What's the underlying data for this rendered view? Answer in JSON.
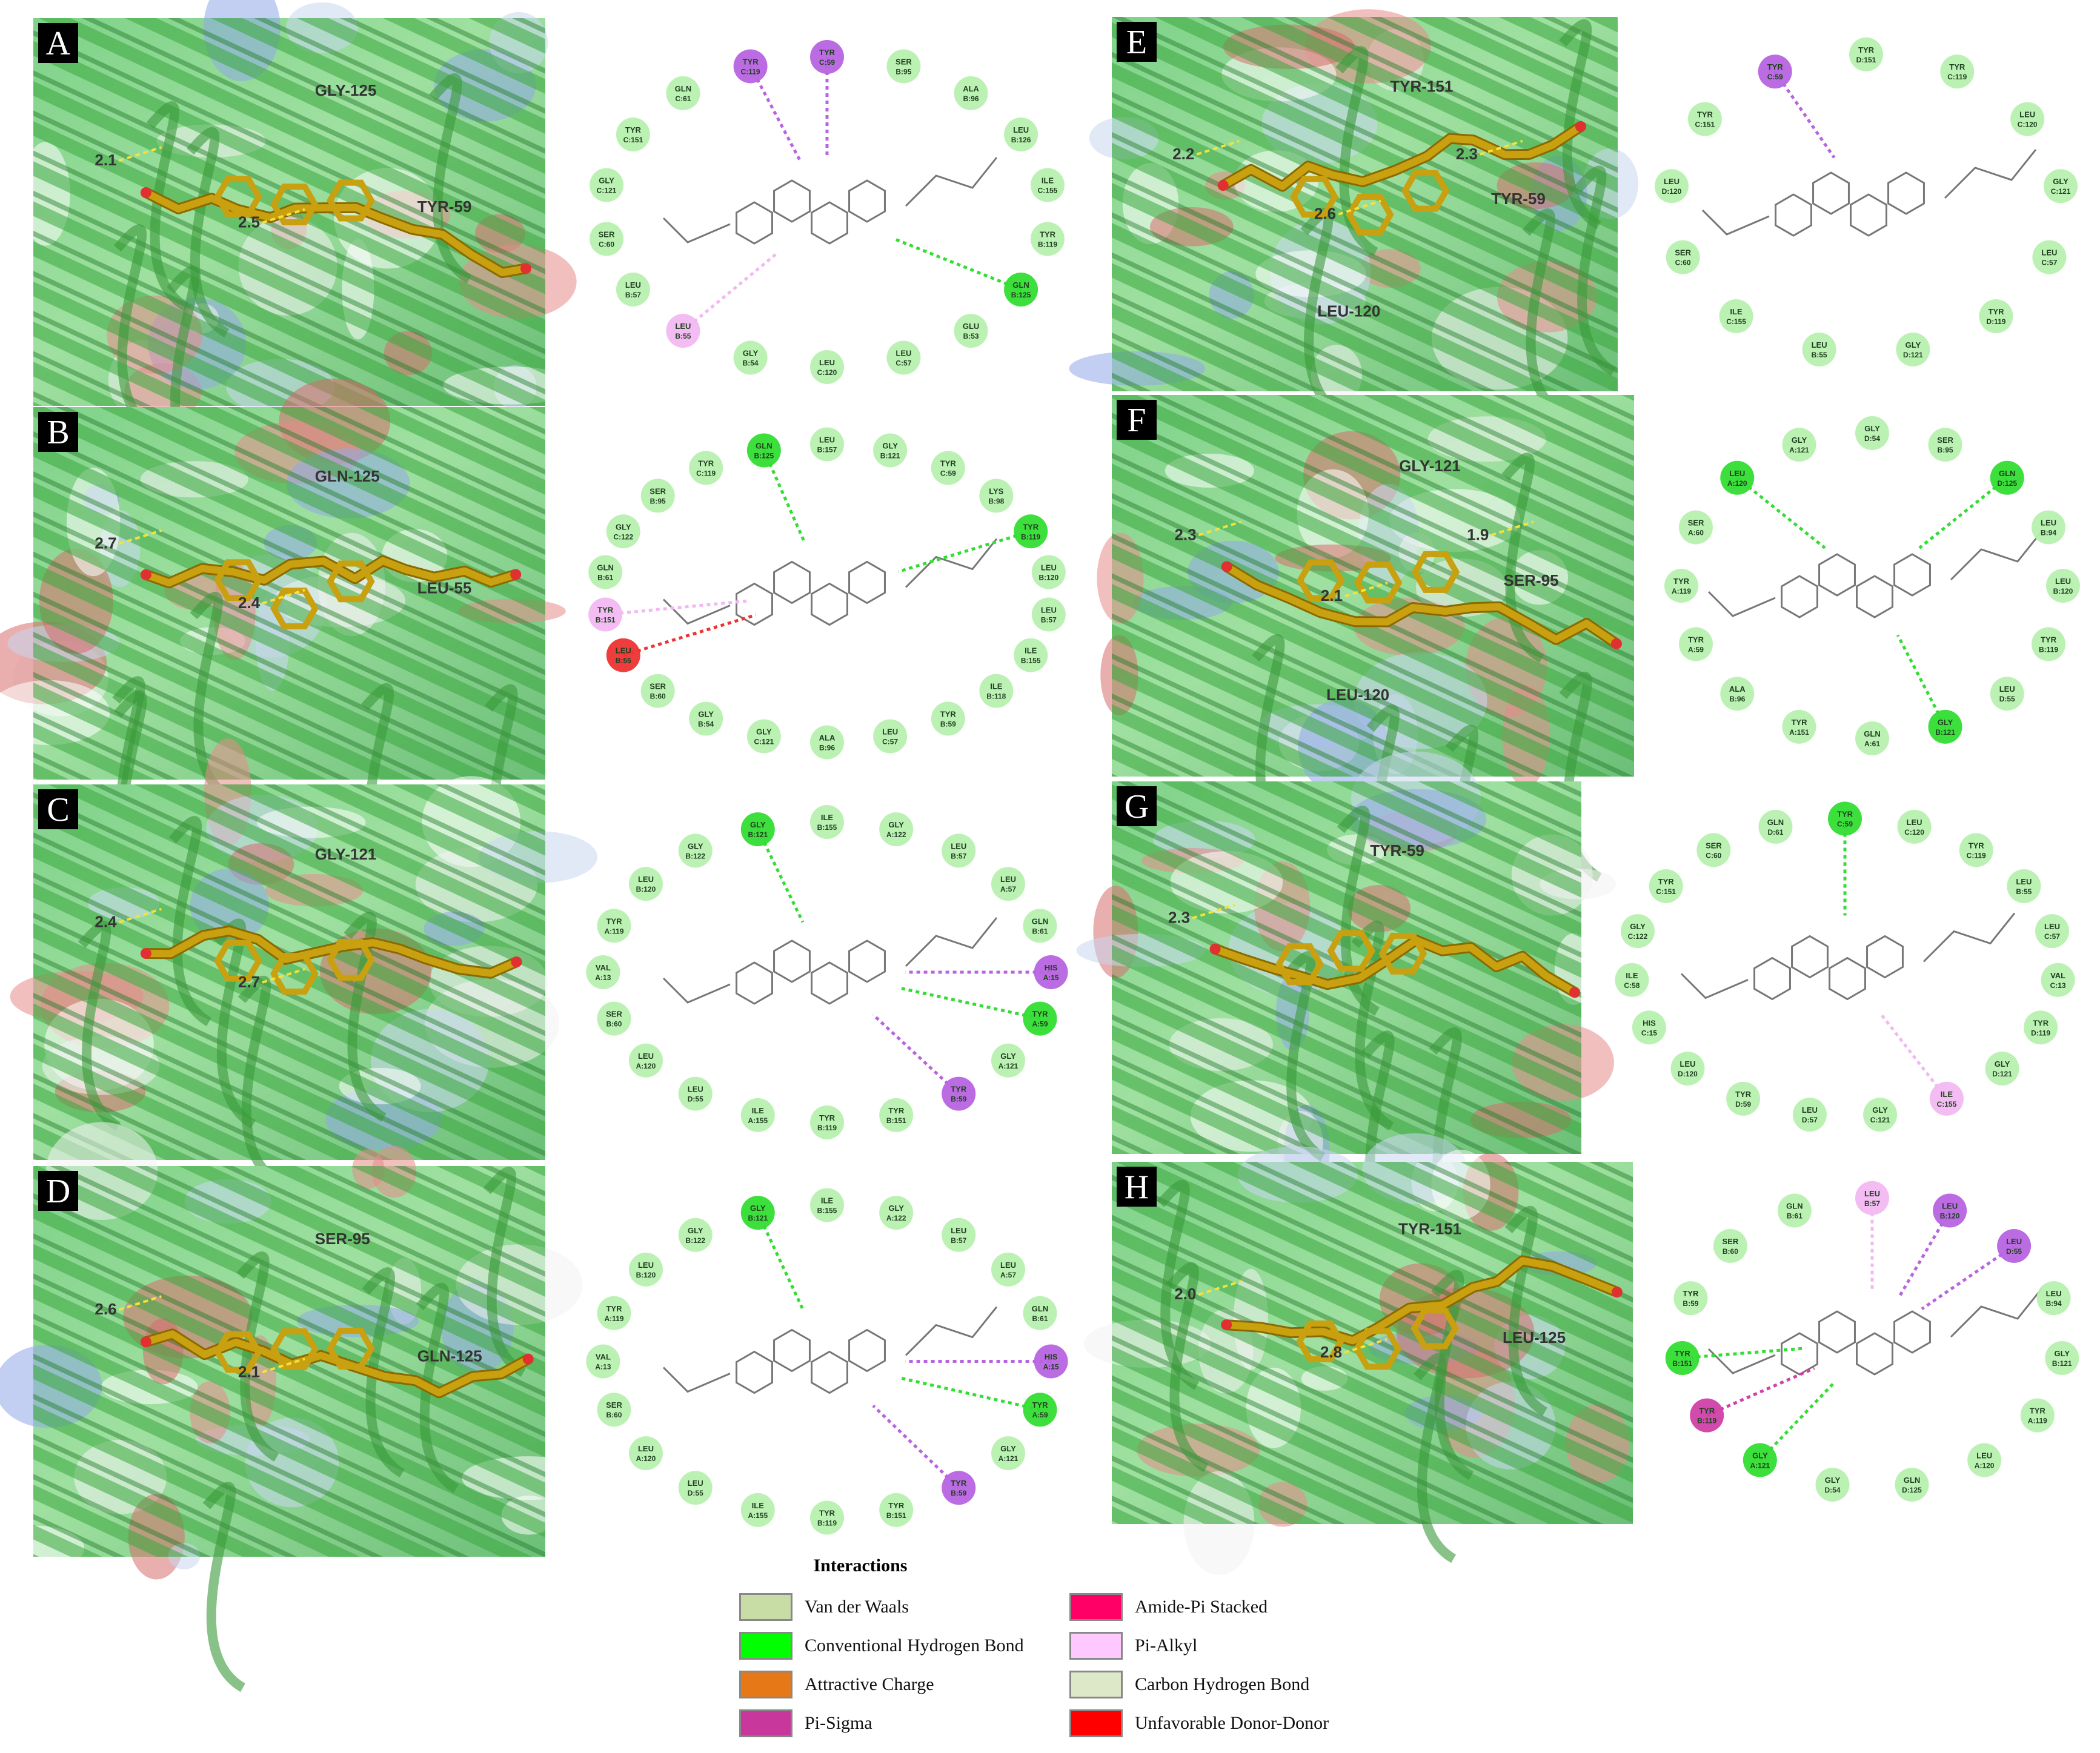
{
  "panels": [
    {
      "letter": "A",
      "distances": [
        "2.1",
        "2.5"
      ],
      "protein_labels": [
        "GLY-125",
        "TYR-59"
      ],
      "residues": [
        {
          "name": "TYR",
          "id": "C:59",
          "type": "pi"
        },
        {
          "name": "SER",
          "id": "B:95",
          "type": "vdw"
        },
        {
          "name": "ALA",
          "id": "B:96",
          "type": "vdw"
        },
        {
          "name": "LEU",
          "id": "B:126",
          "type": "vdw"
        },
        {
          "name": "ILE",
          "id": "C:155",
          "type": "vdw"
        },
        {
          "name": "TYR",
          "id": "B:119",
          "type": "vdw"
        },
        {
          "name": "GLN",
          "id": "B:125",
          "type": "hbond"
        },
        {
          "name": "GLU",
          "id": "B:53",
          "type": "vdw"
        },
        {
          "name": "LEU",
          "id": "C:57",
          "type": "vdw"
        },
        {
          "name": "LEU",
          "id": "C:120",
          "type": "vdw"
        },
        {
          "name": "GLY",
          "id": "B:54",
          "type": "vdw"
        },
        {
          "name": "LEU",
          "id": "B:55",
          "type": "alkyl"
        },
        {
          "name": "LEU",
          "id": "B:57",
          "type": "vdw"
        },
        {
          "name": "SER",
          "id": "C:60",
          "type": "vdw"
        },
        {
          "name": "GLY",
          "id": "C:121",
          "type": "vdw"
        },
        {
          "name": "TYR",
          "id": "C:151",
          "type": "vdw"
        },
        {
          "name": "GLN",
          "id": "C:61",
          "type": "vdw"
        },
        {
          "name": "TYR",
          "id": "C:119",
          "type": "pi"
        }
      ]
    },
    {
      "letter": "B",
      "distances": [
        "2.7",
        "2.4"
      ],
      "protein_labels": [
        "GLN-125",
        "LEU-55"
      ],
      "residues": [
        {
          "name": "LEU",
          "id": "B:157",
          "type": "vdw"
        },
        {
          "name": "GLY",
          "id": "B:121",
          "type": "vdw"
        },
        {
          "name": "TYR",
          "id": "C:59",
          "type": "vdw"
        },
        {
          "name": "LYS",
          "id": "B:98",
          "type": "vdw"
        },
        {
          "name": "TYR",
          "id": "B:119",
          "type": "hbond"
        },
        {
          "name": "LEU",
          "id": "B:120",
          "type": "vdw"
        },
        {
          "name": "LEU",
          "id": "B:57",
          "type": "vdw"
        },
        {
          "name": "ILE",
          "id": "B:155",
          "type": "vdw"
        },
        {
          "name": "ILE",
          "id": "B:118",
          "type": "vdw"
        },
        {
          "name": "TYR",
          "id": "B:59",
          "type": "vdw"
        },
        {
          "name": "LEU",
          "id": "C:57",
          "type": "vdw"
        },
        {
          "name": "ALA",
          "id": "B:96",
          "type": "vdw"
        },
        {
          "name": "GLY",
          "id": "C:121",
          "type": "vdw"
        },
        {
          "name": "GLY",
          "id": "B:54",
          "type": "vdw"
        },
        {
          "name": "SER",
          "id": "B:60",
          "type": "vdw"
        },
        {
          "name": "LEU",
          "id": "B:55",
          "type": "unfav"
        },
        {
          "name": "TYR",
          "id": "B:151",
          "type": "alkyl"
        },
        {
          "name": "GLN",
          "id": "B:61",
          "type": "vdw"
        },
        {
          "name": "GLY",
          "id": "C:122",
          "type": "vdw"
        },
        {
          "name": "SER",
          "id": "B:95",
          "type": "vdw"
        },
        {
          "name": "TYR",
          "id": "C:119",
          "type": "vdw"
        },
        {
          "name": "GLN",
          "id": "B:125",
          "type": "hbond"
        }
      ]
    },
    {
      "letter": "C",
      "distances": [
        "2.4",
        "2.7"
      ],
      "protein_labels": [
        "GLY-121"
      ],
      "residues": [
        {
          "name": "ILE",
          "id": "B:155",
          "type": "vdw"
        },
        {
          "name": "GLY",
          "id": "A:122",
          "type": "vdw"
        },
        {
          "name": "LEU",
          "id": "B:57",
          "type": "vdw"
        },
        {
          "name": "LEU",
          "id": "A:57",
          "type": "vdw"
        },
        {
          "name": "GLN",
          "id": "B:61",
          "type": "vdw"
        },
        {
          "name": "HIS",
          "id": "A:15",
          "type": "pi"
        },
        {
          "name": "TYR",
          "id": "A:59",
          "type": "hbond"
        },
        {
          "name": "GLY",
          "id": "A:121",
          "type": "vdw"
        },
        {
          "name": "TYR",
          "id": "B:59",
          "type": "pi"
        },
        {
          "name": "TYR",
          "id": "B:151",
          "type": "vdw"
        },
        {
          "name": "TYR",
          "id": "B:119",
          "type": "vdw"
        },
        {
          "name": "ILE",
          "id": "A:155",
          "type": "vdw"
        },
        {
          "name": "LEU",
          "id": "D:55",
          "type": "vdw"
        },
        {
          "name": "LEU",
          "id": "A:120",
          "type": "vdw"
        },
        {
          "name": "SER",
          "id": "B:60",
          "type": "vdw"
        },
        {
          "name": "VAL",
          "id": "A:13",
          "type": "vdw"
        },
        {
          "name": "TYR",
          "id": "A:119",
          "type": "vdw"
        },
        {
          "name": "LEU",
          "id": "B:120",
          "type": "vdw"
        },
        {
          "name": "GLY",
          "id": "B:122",
          "type": "vdw"
        },
        {
          "name": "GLY",
          "id": "B:121",
          "type": "hbond"
        }
      ]
    },
    {
      "letter": "D",
      "distances": [
        "2.6",
        "2.1"
      ],
      "protein_labels": [
        "SER-95",
        "GLN-125"
      ],
      "residues": [
        {
          "name": "ILE",
          "id": "B:155",
          "type": "vdw"
        },
        {
          "name": "GLY",
          "id": "A:122",
          "type": "vdw"
        },
        {
          "name": "LEU",
          "id": "B:57",
          "type": "vdw"
        },
        {
          "name": "LEU",
          "id": "A:57",
          "type": "vdw"
        },
        {
          "name": "GLN",
          "id": "B:61",
          "type": "vdw"
        },
        {
          "name": "HIS",
          "id": "A:15",
          "type": "pi"
        },
        {
          "name": "TYR",
          "id": "A:59",
          "type": "hbond"
        },
        {
          "name": "GLY",
          "id": "A:121",
          "type": "vdw"
        },
        {
          "name": "TYR",
          "id": "B:59",
          "type": "pi"
        },
        {
          "name": "TYR",
          "id": "B:151",
          "type": "vdw"
        },
        {
          "name": "TYR",
          "id": "B:119",
          "type": "vdw"
        },
        {
          "name": "ILE",
          "id": "A:155",
          "type": "vdw"
        },
        {
          "name": "LEU",
          "id": "D:55",
          "type": "vdw"
        },
        {
          "name": "LEU",
          "id": "A:120",
          "type": "vdw"
        },
        {
          "name": "SER",
          "id": "B:60",
          "type": "vdw"
        },
        {
          "name": "VAL",
          "id": "A:13",
          "type": "vdw"
        },
        {
          "name": "TYR",
          "id": "A:119",
          "type": "vdw"
        },
        {
          "name": "LEU",
          "id": "B:120",
          "type": "vdw"
        },
        {
          "name": "GLY",
          "id": "B:122",
          "type": "vdw"
        },
        {
          "name": "GLY",
          "id": "B:121",
          "type": "hbond"
        }
      ]
    },
    {
      "letter": "E",
      "distances": [
        "2.2",
        "2.6",
        "2.3"
      ],
      "protein_labels": [
        "TYR-151",
        "TYR-59",
        "LEU-120"
      ],
      "residues": [
        {
          "name": "TYR",
          "id": "D:151",
          "type": "vdw"
        },
        {
          "name": "TYR",
          "id": "C:119",
          "type": "vdw"
        },
        {
          "name": "LEU",
          "id": "C:120",
          "type": "vdw"
        },
        {
          "name": "GLY",
          "id": "C:121",
          "type": "vdw"
        },
        {
          "name": "LEU",
          "id": "C:57",
          "type": "vdw"
        },
        {
          "name": "TYR",
          "id": "D:119",
          "type": "vdw"
        },
        {
          "name": "GLY",
          "id": "D:121",
          "type": "vdw"
        },
        {
          "name": "LEU",
          "id": "B:55",
          "type": "vdw"
        },
        {
          "name": "ILE",
          "id": "C:155",
          "type": "vdw"
        },
        {
          "name": "SER",
          "id": "C:60",
          "type": "vdw"
        },
        {
          "name": "LEU",
          "id": "D:120",
          "type": "vdw"
        },
        {
          "name": "TYR",
          "id": "C:151",
          "type": "vdw"
        },
        {
          "name": "TYR",
          "id": "C:59",
          "type": "pi"
        }
      ]
    },
    {
      "letter": "F",
      "distances": [
        "2.3",
        "2.1",
        "1.9"
      ],
      "protein_labels": [
        "GLY-121",
        "SER-95",
        "LEU-120"
      ],
      "residues": [
        {
          "name": "GLY",
          "id": "D:54",
          "type": "vdw"
        },
        {
          "name": "SER",
          "id": "B:95",
          "type": "vdw"
        },
        {
          "name": "GLN",
          "id": "D:125",
          "type": "hbond"
        },
        {
          "name": "LEU",
          "id": "B:94",
          "type": "vdw"
        },
        {
          "name": "LEU",
          "id": "B:120",
          "type": "vdw"
        },
        {
          "name": "TYR",
          "id": "B:119",
          "type": "vdw"
        },
        {
          "name": "LEU",
          "id": "D:55",
          "type": "vdw"
        },
        {
          "name": "GLY",
          "id": "B:121",
          "type": "hbond"
        },
        {
          "name": "GLN",
          "id": "A:61",
          "type": "vdw"
        },
        {
          "name": "TYR",
          "id": "A:151",
          "type": "vdw"
        },
        {
          "name": "ALA",
          "id": "B:96",
          "type": "vdw"
        },
        {
          "name": "TYR",
          "id": "A:59",
          "type": "vdw"
        },
        {
          "name": "TYR",
          "id": "A:119",
          "type": "vdw"
        },
        {
          "name": "SER",
          "id": "A:60",
          "type": "vdw"
        },
        {
          "name": "LEU",
          "id": "A:120",
          "type": "hbond"
        },
        {
          "name": "GLY",
          "id": "A:121",
          "type": "vdw"
        }
      ]
    },
    {
      "letter": "G",
      "distances": [
        "2.3"
      ],
      "protein_labels": [
        "TYR-59"
      ],
      "residues": [
        {
          "name": "TYR",
          "id": "C:59",
          "type": "hbond"
        },
        {
          "name": "LEU",
          "id": "C:120",
          "type": "vdw"
        },
        {
          "name": "TYR",
          "id": "C:119",
          "type": "vdw"
        },
        {
          "name": "LEU",
          "id": "B:55",
          "type": "vdw"
        },
        {
          "name": "LEU",
          "id": "C:57",
          "type": "vdw"
        },
        {
          "name": "VAL",
          "id": "C:13",
          "type": "vdw"
        },
        {
          "name": "TYR",
          "id": "D:119",
          "type": "vdw"
        },
        {
          "name": "GLY",
          "id": "D:121",
          "type": "vdw"
        },
        {
          "name": "ILE",
          "id": "C:155",
          "type": "alkyl"
        },
        {
          "name": "GLY",
          "id": "C:121",
          "type": "vdw"
        },
        {
          "name": "LEU",
          "id": "D:57",
          "type": "vdw"
        },
        {
          "name": "TYR",
          "id": "D:59",
          "type": "vdw"
        },
        {
          "name": "LEU",
          "id": "D:120",
          "type": "vdw"
        },
        {
          "name": "HIS",
          "id": "C:15",
          "type": "vdw"
        },
        {
          "name": "ILE",
          "id": "C:58",
          "type": "vdw"
        },
        {
          "name": "GLY",
          "id": "C:122",
          "type": "vdw"
        },
        {
          "name": "TYR",
          "id": "C:151",
          "type": "vdw"
        },
        {
          "name": "SER",
          "id": "C:60",
          "type": "vdw"
        },
        {
          "name": "GLN",
          "id": "D:61",
          "type": "vdw"
        }
      ]
    },
    {
      "letter": "H",
      "distances": [
        "2.0",
        "2.8"
      ],
      "protein_labels": [
        "TYR-151",
        "LEU-125"
      ],
      "residues": [
        {
          "name": "LEU",
          "id": "B:57",
          "type": "alkyl"
        },
        {
          "name": "LEU",
          "id": "B:120",
          "type": "pi"
        },
        {
          "name": "LEU",
          "id": "D:55",
          "type": "pi"
        },
        {
          "name": "LEU",
          "id": "B:94",
          "type": "vdw"
        },
        {
          "name": "GLY",
          "id": "B:121",
          "type": "vdw"
        },
        {
          "name": "TYR",
          "id": "A:119",
          "type": "vdw"
        },
        {
          "name": "LEU",
          "id": "A:120",
          "type": "vdw"
        },
        {
          "name": "GLN",
          "id": "D:125",
          "type": "vdw"
        },
        {
          "name": "GLY",
          "id": "D:54",
          "type": "vdw"
        },
        {
          "name": "GLY",
          "id": "A:121",
          "type": "hbond"
        },
        {
          "name": "TYR",
          "id": "B:119",
          "type": "pisigma"
        },
        {
          "name": "TYR",
          "id": "B:151",
          "type": "hbond"
        },
        {
          "name": "TYR",
          "id": "B:59",
          "type": "vdw"
        },
        {
          "name": "SER",
          "id": "B:60",
          "type": "vdw"
        },
        {
          "name": "GLN",
          "id": "B:61",
          "type": "vdw"
        }
      ]
    }
  ],
  "legend": {
    "title": "Interactions",
    "items": [
      {
        "label": "Van der Waals",
        "color": "#c8dca5"
      },
      {
        "label": "Conventional Hydrogen Bond",
        "color": "#00ff00"
      },
      {
        "label": "Attractive Charge",
        "color": "#e67817"
      },
      {
        "label": "Pi-Sigma",
        "color": "#c8389c"
      },
      {
        "label": "Amide-Pi Stacked",
        "color": "#ff0066"
      },
      {
        "label": "Pi-Alkyl",
        "color": "#ffc8ff"
      },
      {
        "label": "Carbon Hydrogen Bond",
        "color": "#dde8c8"
      },
      {
        "label": "Unfavorable Donor-Donor",
        "color": "#ff0000"
      }
    ]
  },
  "colors": {
    "vdw": "#b8f0b0",
    "hbond": "#33dd33",
    "pi": "#b864e0",
    "alkyl": "#f2b8f2",
    "unfav": "#ee3333",
    "pisigma": "#d040a8",
    "ligand": "#c8a010",
    "ribbon": "#3a9a3a"
  }
}
